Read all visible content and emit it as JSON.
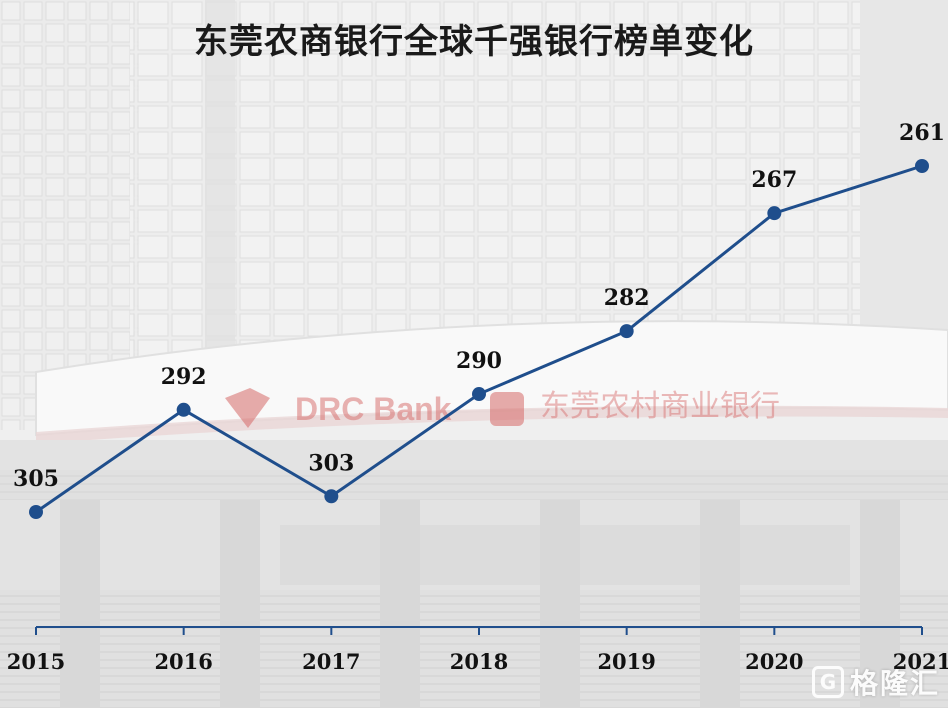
{
  "title": "东莞农商银行全球千强银行榜单变化",
  "colors": {
    "line": "#1f4e8c",
    "marker": "#1f4e8c",
    "axis": "#1f4e8c",
    "text": "#111111"
  },
  "background": {
    "sign_english": "DRC Bank",
    "sign_chinese": "东莞农村商业银行"
  },
  "watermark": {
    "icon": "G",
    "text": "格隆汇"
  },
  "chart_data": {
    "type": "line",
    "title": "东莞农商银行全球千强银行榜单变化",
    "categories": [
      "2015",
      "2016",
      "2017",
      "2018",
      "2019",
      "2020",
      "2021"
    ],
    "values": [
      305,
      292,
      303,
      290,
      282,
      267,
      261
    ],
    "ylim": [
      250,
      320
    ],
    "y_inverted": true,
    "grid": false,
    "data_labels": true,
    "xlabel": "",
    "ylabel": ""
  }
}
